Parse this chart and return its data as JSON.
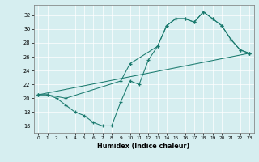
{
  "xlabel": "Humidex (Indice chaleur)",
  "bg_color": "#d6eef0",
  "line_color": "#1a7a6e",
  "grid_color": "#ffffff",
  "xlim": [
    -0.5,
    23.5
  ],
  "ylim": [
    15.0,
    33.5
  ],
  "xticks": [
    0,
    1,
    2,
    3,
    4,
    5,
    6,
    7,
    8,
    9,
    10,
    11,
    12,
    13,
    14,
    15,
    16,
    17,
    18,
    19,
    20,
    21,
    22,
    23
  ],
  "yticks": [
    16,
    18,
    20,
    22,
    24,
    26,
    28,
    30,
    32
  ],
  "line1_x": [
    0,
    1,
    2,
    3,
    4,
    5,
    6,
    7,
    8,
    9,
    10,
    11,
    12,
    13,
    14,
    15,
    16,
    17,
    18,
    19,
    20,
    21,
    22,
    23
  ],
  "line1_y": [
    20.5,
    20.5,
    20.0,
    19.0,
    18.0,
    17.5,
    16.5,
    16.0,
    16.0,
    19.5,
    22.5,
    22.0,
    25.5,
    27.5,
    30.5,
    31.5,
    31.5,
    31.0,
    32.5,
    31.5,
    30.5,
    28.5,
    27.0,
    26.5
  ],
  "line2_x": [
    0,
    1,
    3,
    9,
    10,
    13,
    14,
    15,
    16,
    17,
    18,
    19,
    20,
    21,
    22,
    23
  ],
  "line2_y": [
    20.5,
    20.5,
    20.0,
    22.5,
    25.0,
    27.5,
    30.5,
    31.5,
    31.5,
    31.0,
    32.5,
    31.5,
    30.5,
    28.5,
    27.0,
    26.5
  ],
  "line3_x": [
    0,
    23
  ],
  "line3_y": [
    20.5,
    26.5
  ]
}
